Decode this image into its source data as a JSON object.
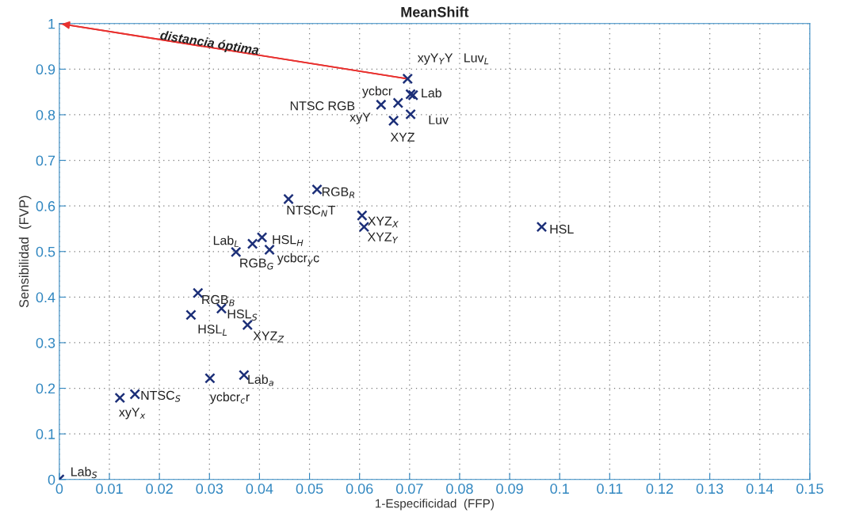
{
  "chart_data": {
    "type": "scatter",
    "title": "MeanShift",
    "xlabel": "1-Especificidad  (FFP)",
    "ylabel": "Sensibilidad  (FVP)",
    "xlim": [
      0,
      0.15
    ],
    "ylim": [
      0,
      1
    ],
    "xticks": [
      0,
      0.01,
      0.02,
      0.03,
      0.04,
      0.05,
      0.06,
      0.07,
      0.08,
      0.09,
      0.1,
      0.11,
      0.12,
      0.13,
      0.14,
      0.15
    ],
    "yticks": [
      0,
      0.1,
      0.2,
      0.3,
      0.4,
      0.5,
      0.6,
      0.7,
      0.8,
      0.9,
      1
    ],
    "grid": true,
    "series": [
      {
        "color": "#1c2f78",
        "marker": "cross",
        "x": [
          0.0696,
          0.0702,
          0.0707,
          0.0643,
          0.0677,
          0.0702,
          0.0668,
          0.0515,
          0.0458,
          0.0605,
          0.0609,
          0.0386,
          0.0405,
          0.0353,
          0.042,
          0.0277,
          0.0324,
          0.0263,
          0.0376,
          0.0301,
          0.0369,
          0.0151,
          0.0121,
          0,
          0.0964
        ],
        "values": [
          0.879,
          0.845,
          0.843,
          0.822,
          0.826,
          0.801,
          0.787,
          0.636,
          0.615,
          0.579,
          0.554,
          0.517,
          0.531,
          0.499,
          0.504,
          0.409,
          0.375,
          0.361,
          0.339,
          0.222,
          0.229,
          0.187,
          0.179,
          0,
          0.554
        ]
      },
      {
        "type": "line",
        "color": "#e8312f",
        "x": [
          0.0696,
          0
        ],
        "values": [
          0.879,
          1
        ]
      }
    ],
    "annotations": [
      {
        "text": "distancia óptima",
        "x": 0.03,
        "y": 0.956
      },
      {
        "text": "xyY$_{Y}$Y   Luv$_{L}$",
        "x": 0.0696,
        "y": 0.879
      },
      {
        "text": "ycbcr",
        "x": 0.0702,
        "y": 0.845
      },
      {
        "text": "Lab",
        "x": 0.0707,
        "y": 0.843
      },
      {
        "text": "NTSC RGB",
        "x": 0.0643,
        "y": 0.822
      },
      {
        "text": "xyY",
        "x": 0.0677,
        "y": 0.826
      },
      {
        "text": "Luv",
        "x": 0.0702,
        "y": 0.801
      },
      {
        "text": "XYZ",
        "x": 0.0668,
        "y": 0.787
      },
      {
        "text": "RGB$_{R}$",
        "x": 0.0515,
        "y": 0.636
      },
      {
        "text": "NTSC$_{N}$T",
        "x": 0.0458,
        "y": 0.615
      },
      {
        "text": "XYZ$_{X}$",
        "x": 0.0605,
        "y": 0.579
      },
      {
        "text": "XYZ$_{Y}$",
        "x": 0.0609,
        "y": 0.554
      },
      {
        "text": "Lab$_{L}$",
        "x": 0.0386,
        "y": 0.517
      },
      {
        "text": "HSL$_{H}$",
        "x": 0.0405,
        "y": 0.531
      },
      {
        "text": "RGB$_{G}$",
        "x": 0.0353,
        "y": 0.499
      },
      {
        "text": "ycbcr$_{y}$c",
        "x": 0.042,
        "y": 0.504
      },
      {
        "text": "RGB$_{B}$",
        "x": 0.0277,
        "y": 0.409
      },
      {
        "text": "HSL$_{S}$",
        "x": 0.0324,
        "y": 0.375
      },
      {
        "text": "HSL$_{L}$",
        "x": 0.0263,
        "y": 0.361
      },
      {
        "text": "XYZ$_{Z}$",
        "x": 0.0376,
        "y": 0.339
      },
      {
        "text": "ycbcr$_{c}$r",
        "x": 0.0301,
        "y": 0.222
      },
      {
        "text": "Lab$_{a}$",
        "x": 0.0369,
        "y": 0.229
      },
      {
        "text": "NTSC$_{S}$",
        "x": 0.0151,
        "y": 0.187
      },
      {
        "text": "xyY$_{x}$",
        "x": 0.0121,
        "y": 0.179
      },
      {
        "text": "Lab$_{S}$",
        "x": 0,
        "y": 0
      },
      {
        "text": "HSL",
        "x": 0.0964,
        "y": 0.554
      }
    ]
  }
}
